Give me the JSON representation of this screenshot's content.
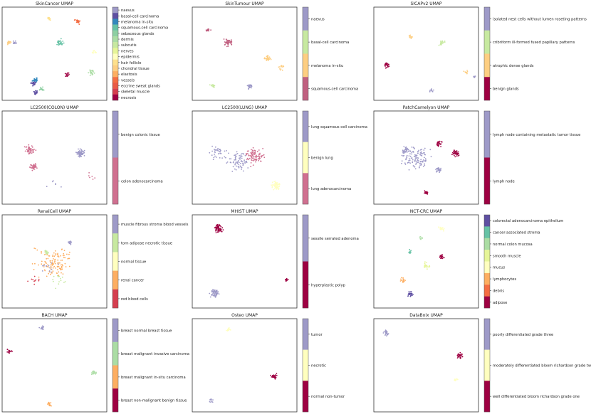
{
  "chart_data": [
    {
      "type": "scatter",
      "title": "SkinCancer UMAP",
      "legend": [
        "naevus",
        "basal-cell carcinoma",
        "melanoma in-situ",
        "squamous-cell carcinoma",
        "sebaceous glands",
        "dermis",
        "subcutis",
        "nerves",
        "epidermis",
        "hair follicle",
        "chondral tissue",
        "elastosis",
        "vessels",
        "eccrine sweat glands",
        "skeletal muscle",
        "necrosis"
      ],
      "colors": [
        "#9e9ac8",
        "#5e4fa2",
        "#3288bd",
        "#66c2a5",
        "#8ecfa2",
        "#abdda4",
        "#c7e9a0",
        "#e6f598",
        "#ffffbf",
        "#fee08b",
        "#fdce82",
        "#fdae61",
        "#f46d43",
        "#ea5a46",
        "#d53e4f",
        "#9e0142"
      ],
      "clusters": [
        {
          "x": 0.12,
          "y": 0.62,
          "label": 0,
          "n": 18,
          "s": 0.03
        },
        {
          "x": 0.32,
          "y": 0.08,
          "label": 1,
          "n": 20,
          "s": 0.03
        },
        {
          "x": 0.55,
          "y": 0.62,
          "label": 3,
          "n": 35,
          "s": 0.05
        },
        {
          "x": 0.32,
          "y": 0.22,
          "label": 2,
          "n": 26,
          "s": 0.04
        },
        {
          "x": 0.3,
          "y": 0.18,
          "label": 1,
          "n": 20,
          "s": 0.04
        },
        {
          "x": 0.85,
          "y": 0.3,
          "label": 5,
          "n": 24,
          "s": 0.04
        },
        {
          "x": 0.07,
          "y": 0.62,
          "label": 10,
          "n": 18,
          "s": 0.03
        },
        {
          "x": 0.72,
          "y": 0.85,
          "label": 12,
          "n": 20,
          "s": 0.04
        },
        {
          "x": 0.62,
          "y": 0.28,
          "label": 15,
          "n": 14,
          "s": 0.03
        },
        {
          "x": 0.38,
          "y": 0.12,
          "label": 4,
          "n": 16,
          "s": 0.03
        },
        {
          "x": 0.88,
          "y": 0.52,
          "label": 8,
          "n": 12,
          "s": 0.03
        },
        {
          "x": 0.45,
          "y": 0.88,
          "label": 9,
          "n": 12,
          "s": 0.03
        }
      ]
    },
    {
      "type": "scatter",
      "title": "SkinTumour UMAP",
      "legend": [
        "naevus",
        "basal-cell carcinoma",
        "melanoma in-situ",
        "squamous-cell carcinoma"
      ],
      "colors": [
        "#9e9ac8",
        "#c7e9a0",
        "#fdce82",
        "#c06080"
      ],
      "clusters": [
        {
          "x": 0.35,
          "y": 0.62,
          "label": 3,
          "n": 40,
          "s": 0.06
        },
        {
          "x": 0.15,
          "y": 0.75,
          "label": 3,
          "n": 14,
          "s": 0.03
        },
        {
          "x": 0.72,
          "y": 0.45,
          "label": 2,
          "n": 30,
          "s": 0.05
        },
        {
          "x": 0.55,
          "y": 0.15,
          "label": 0,
          "n": 28,
          "s": 0.04
        },
        {
          "x": 0.2,
          "y": 0.15,
          "label": 1,
          "n": 14,
          "s": 0.04
        },
        {
          "x": 0.85,
          "y": 0.35,
          "label": 2,
          "n": 14,
          "s": 0.04
        }
      ]
    },
    {
      "type": "scatter",
      "title": "SICAPv2 UMAP",
      "legend": [
        "isolated nest cells without lumen roseting patterns",
        "cribriform ill-formed fused papillary patterns",
        "atrophic dense glands",
        "benign glands"
      ],
      "colors": [
        "#9e9ac8",
        "#c7e9a0",
        "#fdce82",
        "#9e0142"
      ],
      "clusters": [
        {
          "x": 0.12,
          "y": 0.38,
          "label": 3,
          "n": 30,
          "s": 0.04
        },
        {
          "x": 0.65,
          "y": 0.62,
          "label": 1,
          "n": 18,
          "s": 0.04
        },
        {
          "x": 0.35,
          "y": 0.68,
          "label": 2,
          "n": 12,
          "s": 0.03
        },
        {
          "x": 0.55,
          "y": 0.1,
          "label": 0,
          "n": 10,
          "s": 0.03
        },
        {
          "x": 0.88,
          "y": 0.3,
          "label": 2,
          "n": 10,
          "s": 0.03
        },
        {
          "x": 0.96,
          "y": 0.25,
          "label": 0,
          "n": 8,
          "s": 0.02
        }
      ]
    },
    {
      "type": "scatter",
      "title": "LC2500(COLON) UMAP",
      "legend": [
        "benign colonic tissue",
        "colon adenocarcinoma"
      ],
      "colors": [
        "#9e9ac8",
        "#d07090"
      ],
      "clusters": [
        {
          "x": 0.27,
          "y": 0.58,
          "label": 1,
          "n": 50,
          "s": 0.06
        },
        {
          "x": 0.3,
          "y": 0.4,
          "label": 1,
          "n": 40,
          "s": 0.05
        },
        {
          "x": 0.75,
          "y": 0.55,
          "label": 0,
          "n": 60,
          "s": 0.06
        },
        {
          "x": 0.85,
          "y": 0.3,
          "label": 1,
          "n": 6,
          "s": 0.06
        },
        {
          "x": 0.5,
          "y": 0.2,
          "label": 0,
          "n": 6,
          "s": 0.1
        }
      ]
    },
    {
      "type": "scatter",
      "title": "LC2500(LUNG) UMAP",
      "legend": [
        "lung squamous cell carcinoma",
        "benign lung",
        "lung adenocarcinoma"
      ],
      "colors": [
        "#9e9ac8",
        "#ffffbf",
        "#d07090"
      ],
      "clusters": [
        {
          "x": 0.45,
          "y": 0.45,
          "label": 0,
          "n": 70,
          "s": 0.15
        },
        {
          "x": 0.6,
          "y": 0.52,
          "label": 2,
          "n": 90,
          "s": 0.12
        },
        {
          "x": 0.8,
          "y": 0.2,
          "label": 1,
          "n": 60,
          "s": 0.06
        },
        {
          "x": 0.25,
          "y": 0.55,
          "label": 0,
          "n": 40,
          "s": 0.12
        }
      ]
    },
    {
      "type": "scatter",
      "title": "PatchCamelyon UMAP",
      "legend": [
        "lymph node containing metastatic tumor tissue",
        "lymph node"
      ],
      "colors": [
        "#9e9ac8",
        "#9e0142"
      ],
      "clusters": [
        {
          "x": 0.4,
          "y": 0.5,
          "label": 0,
          "n": 120,
          "s": 0.18
        },
        {
          "x": 0.62,
          "y": 0.65,
          "label": 1,
          "n": 30,
          "s": 0.04
        },
        {
          "x": 0.78,
          "y": 0.55,
          "label": 1,
          "n": 40,
          "s": 0.05
        },
        {
          "x": 0.62,
          "y": 0.37,
          "label": 0,
          "n": 30,
          "s": 0.04
        },
        {
          "x": 0.5,
          "y": 0.12,
          "label": 1,
          "n": 20,
          "s": 0.03
        },
        {
          "x": 0.3,
          "y": 0.58,
          "label": 0,
          "n": 30,
          "s": 0.05
        }
      ]
    },
    {
      "type": "scatter",
      "title": "RenalCell UMAP",
      "legend": [
        "muscle fibrous stroma blood vessels",
        "torn adipose necrotic tissue",
        "normal tissue",
        "renal cancer",
        "red blood cells"
      ],
      "colors": [
        "#9e9ac8",
        "#c7e9a0",
        "#ffffbf",
        "#fdae61",
        "#d53e4f"
      ],
      "clusters": [
        {
          "x": 0.5,
          "y": 0.5,
          "label": 3,
          "n": 120,
          "s": 0.22
        },
        {
          "x": 0.42,
          "y": 0.6,
          "label": 1,
          "n": 20,
          "s": 0.03
        },
        {
          "x": 0.65,
          "y": 0.7,
          "label": 0,
          "n": 18,
          "s": 0.03
        },
        {
          "x": 0.45,
          "y": 0.45,
          "label": 0,
          "n": 12,
          "s": 0.12
        },
        {
          "x": 0.3,
          "y": 0.3,
          "label": 4,
          "n": 10,
          "s": 0.1
        },
        {
          "x": 0.55,
          "y": 0.3,
          "label": 1,
          "n": 14,
          "s": 0.12
        }
      ]
    },
    {
      "type": "scatter",
      "title": "MHIST UMAP",
      "legend": [
        "sessile serrated adenoma",
        "hyperplastic polyp"
      ],
      "colors": [
        "#9e9ac8",
        "#9e0142"
      ],
      "clusters": [
        {
          "x": 0.25,
          "y": 0.85,
          "label": 1,
          "n": 60,
          "s": 0.06
        },
        {
          "x": 0.22,
          "y": 0.15,
          "label": 0,
          "n": 60,
          "s": 0.06
        },
        {
          "x": 0.9,
          "y": 0.3,
          "label": 1,
          "n": 16,
          "s": 0.02
        }
      ]
    },
    {
      "type": "scatter",
      "title": "NCT-CRC UMAP",
      "legend": [
        "colorectal adenocarcinoma epithelium",
        "cancer-associated stroma",
        "normal colon mucosa",
        "smooth muscle",
        "mucus",
        "lymphocytes",
        "debris",
        "adipose"
      ],
      "colors": [
        "#5e4fa2",
        "#66c2a5",
        "#abdda4",
        "#e6f598",
        "#ffffbf",
        "#fdae61",
        "#f46d43",
        "#9e0142"
      ],
      "clusters": [
        {
          "x": 0.35,
          "y": 0.15,
          "label": 0,
          "n": 30,
          "s": 0.04
        },
        {
          "x": 0.65,
          "y": 0.55,
          "label": 7,
          "n": 20,
          "s": 0.03
        },
        {
          "x": 0.35,
          "y": 0.6,
          "label": 1,
          "n": 10,
          "s": 0.03
        },
        {
          "x": 0.5,
          "y": 0.45,
          "label": 3,
          "n": 20,
          "s": 0.05
        },
        {
          "x": 0.28,
          "y": 0.3,
          "label": 5,
          "n": 16,
          "s": 0.04
        },
        {
          "x": 0.65,
          "y": 0.85,
          "label": 4,
          "n": 14,
          "s": 0.04
        },
        {
          "x": 0.45,
          "y": 0.75,
          "label": 2,
          "n": 10,
          "s": 0.03
        }
      ]
    },
    {
      "type": "scatter",
      "title": "BACH UMAP",
      "legend": [
        "breast normal breast tissue",
        "breast malignant invasive carcinoma",
        "breast malignant in-situ carcinoma",
        "breast non-malignant benign tissue"
      ],
      "colors": [
        "#9e9ac8",
        "#abdda4",
        "#fdae61",
        "#9e0142"
      ],
      "clusters": [
        {
          "x": 0.38,
          "y": 0.9,
          "label": 0,
          "n": 16,
          "s": 0.03
        },
        {
          "x": 0.07,
          "y": 0.65,
          "label": 3,
          "n": 16,
          "s": 0.03
        },
        {
          "x": 0.88,
          "y": 0.42,
          "label": 1,
          "n": 16,
          "s": 0.03
        },
        {
          "x": 0.45,
          "y": 0.08,
          "label": 2,
          "n": 16,
          "s": 0.03
        }
      ]
    },
    {
      "type": "scatter",
      "title": "Osteo UMAP",
      "legend": [
        "tumor",
        "necrotic",
        "normal non-tumor"
      ],
      "colors": [
        "#9e9ac8",
        "#ffffbf",
        "#9e0142"
      ],
      "clusters": [
        {
          "x": 0.35,
          "y": 0.88,
          "label": 1,
          "n": 12,
          "s": 0.03
        },
        {
          "x": 0.78,
          "y": 0.38,
          "label": 2,
          "n": 30,
          "s": 0.04
        },
        {
          "x": 0.18,
          "y": 0.12,
          "label": 0,
          "n": 12,
          "s": 0.03
        }
      ]
    },
    {
      "type": "scatter",
      "title": "DataBoix UMAP",
      "legend": [
        "poorly differentiated grade three",
        "moderately differentiated bloom richardson grade two",
        "well differentiated bloom richardson grade one"
      ],
      "colors": [
        "#9e9ac8",
        "#ffffbf",
        "#9e0142"
      ],
      "clusters": [
        {
          "x": 0.12,
          "y": 0.85,
          "label": 0,
          "n": 30,
          "s": 0.04
        },
        {
          "x": 0.82,
          "y": 0.6,
          "label": 2,
          "n": 30,
          "s": 0.04
        },
        {
          "x": 0.78,
          "y": 0.35,
          "label": 1,
          "n": 10,
          "s": 0.03
        }
      ]
    }
  ]
}
